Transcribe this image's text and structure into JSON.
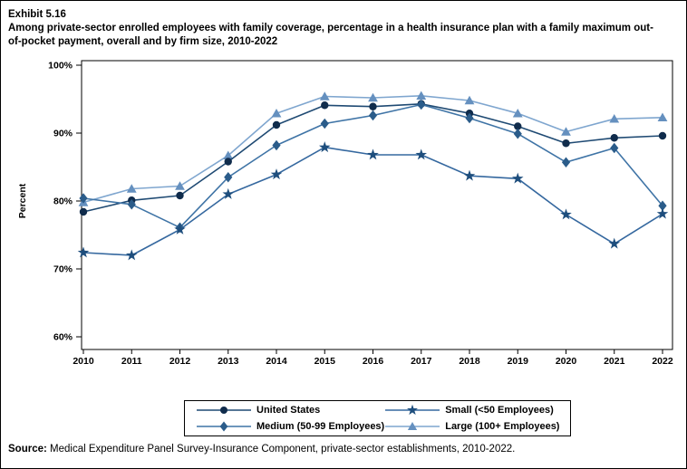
{
  "header": {
    "exhibit": "Exhibit 5.16",
    "title": "Among private-sector enrolled employees with family coverage, percentage in a health insurance plan with a family maximum out-of-pocket payment, overall and by firm size, 2010-2022"
  },
  "source": {
    "prefix": "Source:",
    "text": " Medical Expenditure Panel Survey-Insurance Component, private-sector establishments, 2010-2022."
  },
  "chart_data": {
    "type": "line",
    "x": [
      2010,
      2011,
      2012,
      2013,
      2014,
      2015,
      2016,
      2017,
      2018,
      2019,
      2020,
      2021,
      2022
    ],
    "xticks": [
      "2010",
      "2011",
      "2012",
      "2013",
      "2014",
      "2015",
      "2016",
      "2017",
      "2018",
      "2019",
      "2020",
      "2021",
      "2022"
    ],
    "ylabel": "Percent",
    "xlabel": "",
    "ylim": [
      60,
      100
    ],
    "yticks": [
      {
        "value": 60,
        "label": "60%"
      },
      {
        "value": 70,
        "label": "70%"
      },
      {
        "value": 80,
        "label": "80%"
      },
      {
        "value": 90,
        "label": "90%"
      },
      {
        "value": 100,
        "label": "100%"
      }
    ],
    "grid": false,
    "legend_position": "bottom",
    "series": [
      {
        "name": "United States",
        "marker": "circle",
        "color": "#102c4c",
        "line_color": "#1f4a73",
        "values": [
          78.4,
          80.1,
          80.8,
          85.8,
          91.2,
          94.1,
          93.9,
          94.3,
          92.9,
          91.0,
          88.5,
          89.3,
          89.6
        ]
      },
      {
        "name": "Medium (50-99 Employees)",
        "marker": "diamond",
        "color": "#2b5c8a",
        "line_color": "#3f74a6",
        "values": [
          80.4,
          79.5,
          76.1,
          83.5,
          88.2,
          91.4,
          92.6,
          94.2,
          92.2,
          89.9,
          85.7,
          87.8,
          79.3
        ]
      },
      {
        "name": "Small (<50 Employees)",
        "marker": "star",
        "color": "#1e4e7d",
        "line_color": "#35689f",
        "values": [
          72.4,
          72.0,
          75.8,
          81.0,
          83.9,
          87.9,
          86.8,
          86.8,
          83.7,
          83.3,
          78.0,
          73.7,
          78.1
        ]
      },
      {
        "name": "Large (100+ Employees)",
        "marker": "triangle",
        "color": "#6590bf",
        "line_color": "#7fa6cf",
        "values": [
          79.8,
          81.8,
          82.2,
          86.7,
          92.9,
          95.4,
          95.2,
          95.5,
          94.8,
          92.9,
          90.2,
          92.1,
          92.3
        ]
      }
    ]
  },
  "legend_display_order": [
    0,
    2,
    1,
    3
  ]
}
